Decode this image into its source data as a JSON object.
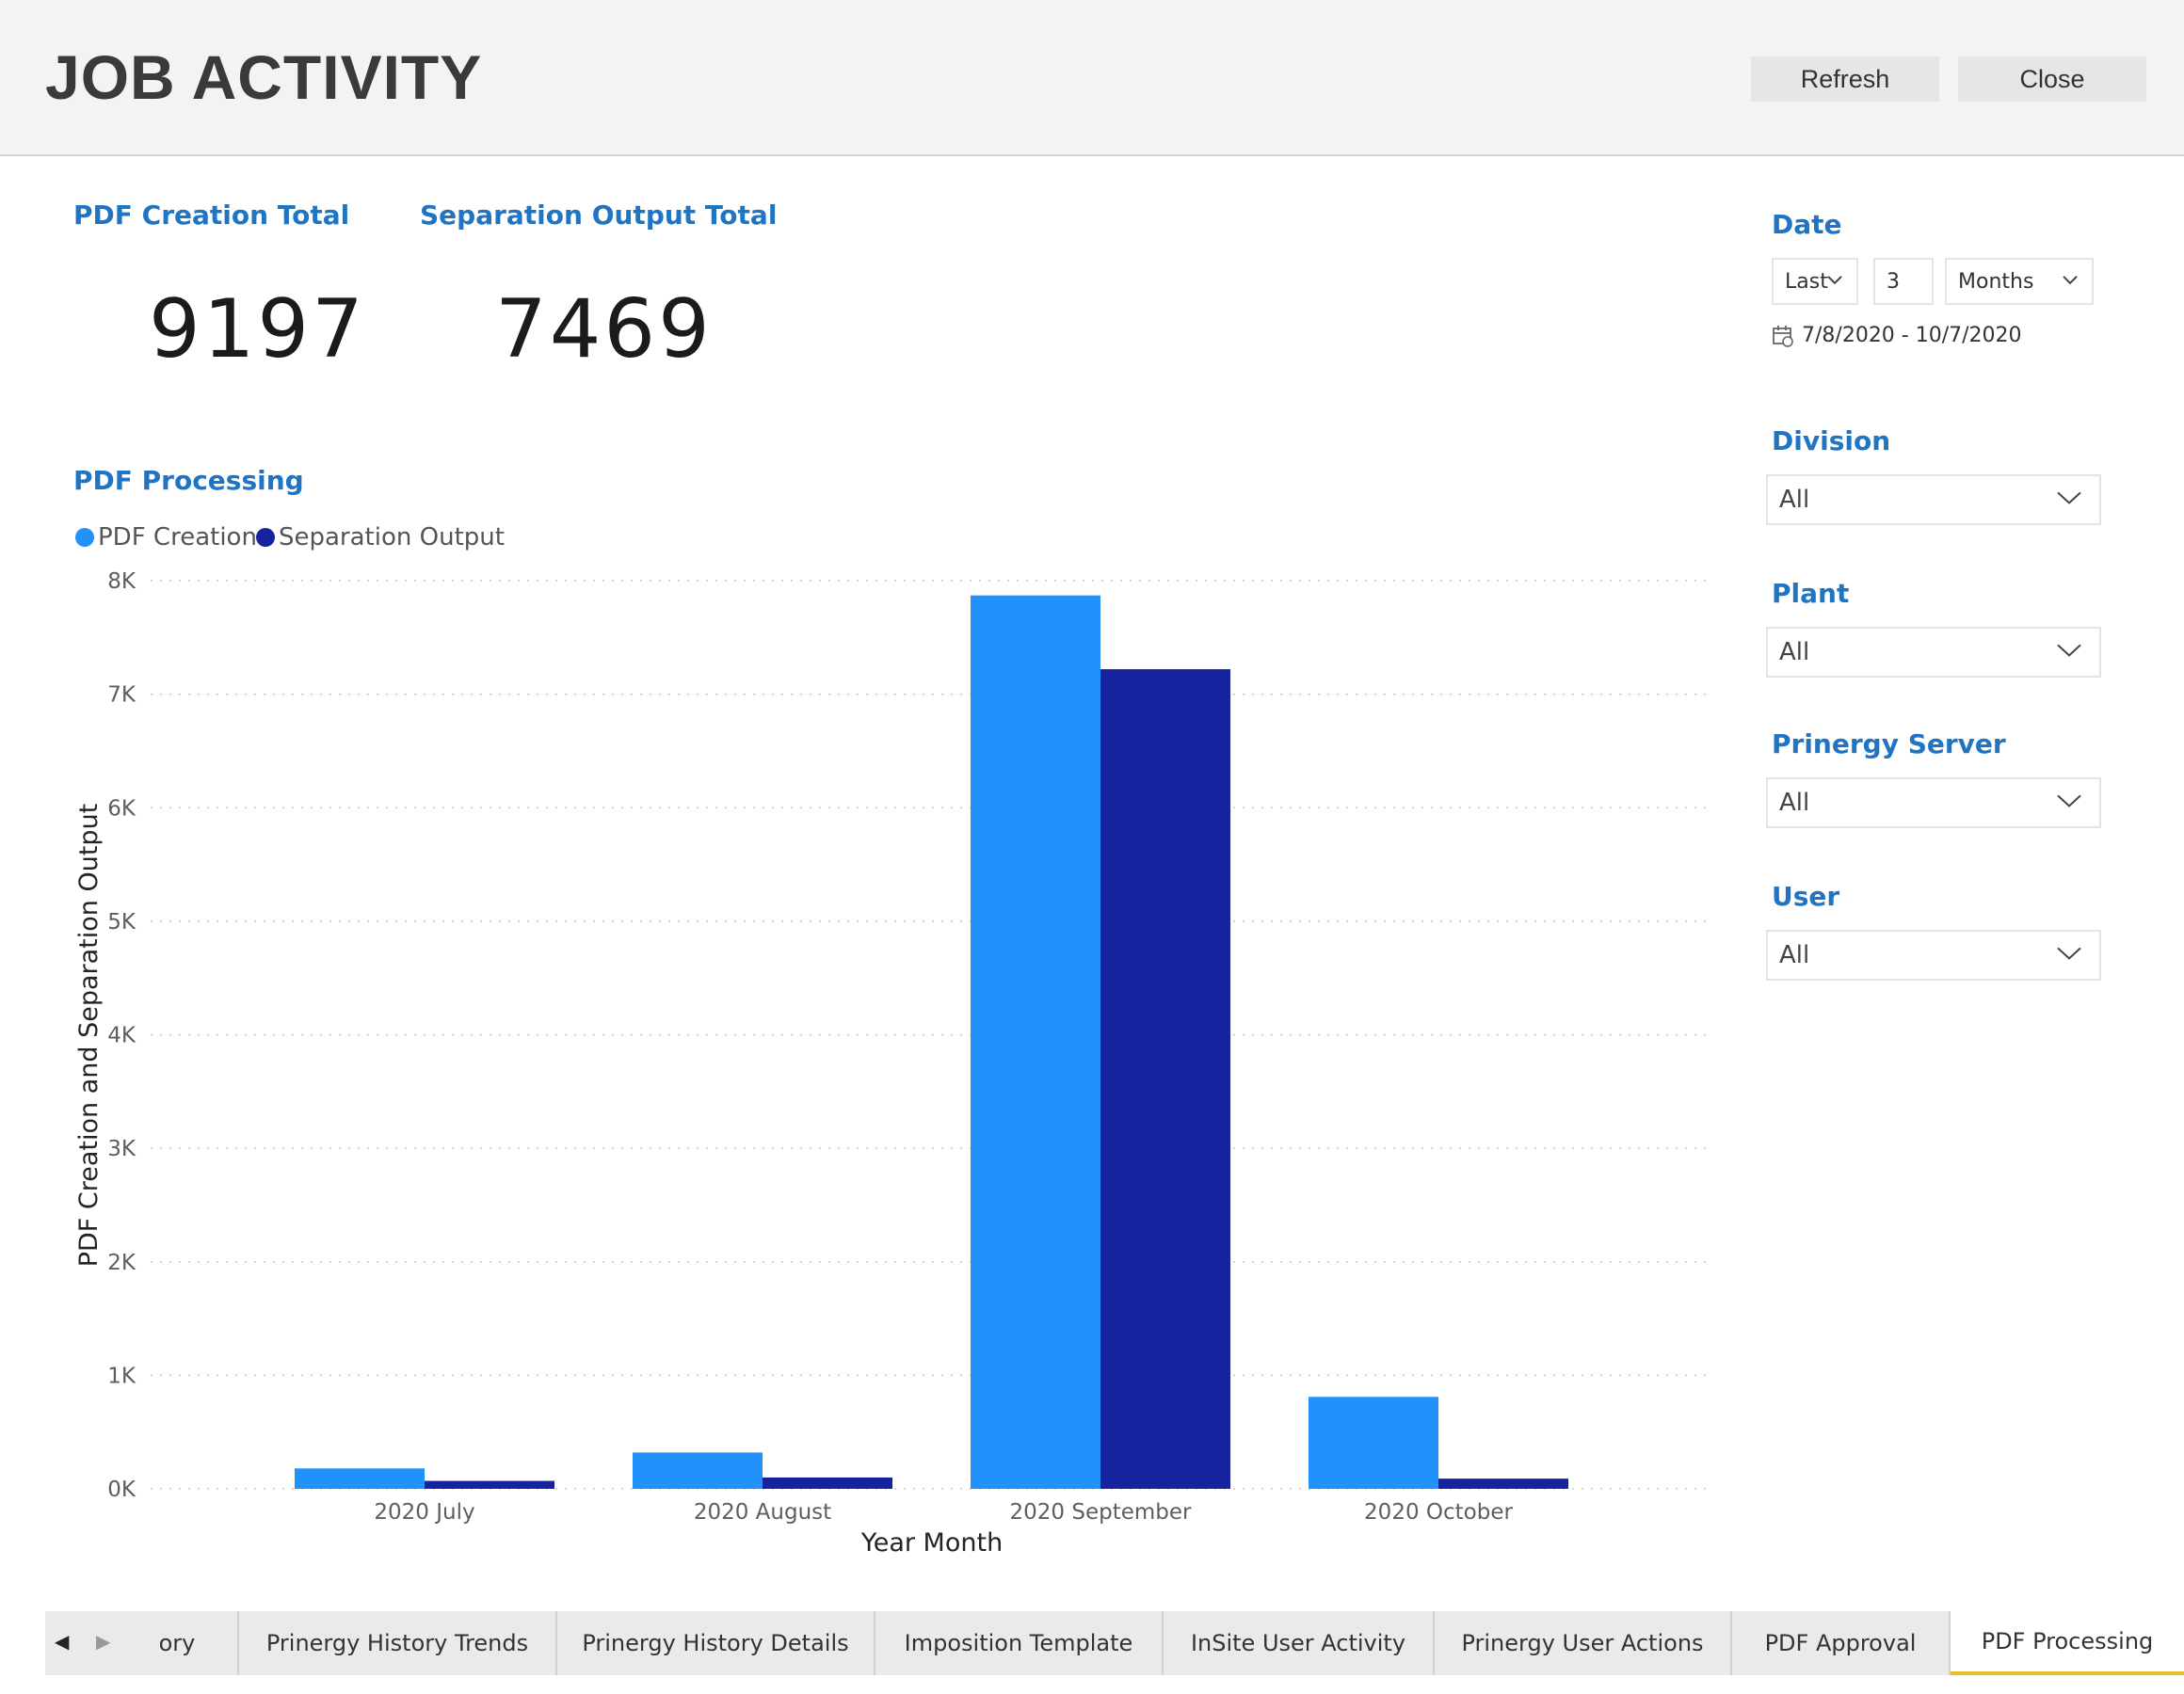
{
  "header": {
    "title": "JOB ACTIVITY",
    "refresh_label": "Refresh",
    "close_label": "Close"
  },
  "cards": [
    {
      "title": "PDF Creation Total",
      "value": "9197"
    },
    {
      "title": "Separation Output Total",
      "value": "7469"
    }
  ],
  "chart_data": {
    "type": "bar",
    "title": "PDF Processing",
    "xlabel": "Year Month",
    "ylabel": "PDF Creation and Separation Output",
    "categories": [
      "2020 July",
      "2020 August",
      "2020 September",
      "2020 October"
    ],
    "series": [
      {
        "name": "PDF Creation",
        "color": "#2191fb",
        "values": [
          180,
          320,
          7870,
          810
        ]
      },
      {
        "name": "Separation Output",
        "color": "#15249e",
        "values": [
          70,
          100,
          7220,
          90
        ]
      }
    ],
    "ylim": [
      0,
      8000
    ],
    "yticks": [
      0,
      1000,
      2000,
      3000,
      4000,
      5000,
      6000,
      7000,
      8000
    ],
    "ytick_labels": [
      "0K",
      "1K",
      "2K",
      "3K",
      "4K",
      "5K",
      "6K",
      "7K",
      "8K"
    ],
    "grid": true,
    "legend": "top-left"
  },
  "filters": {
    "date": {
      "title": "Date",
      "mode": "Last",
      "count": "3",
      "unit": "Months",
      "range": "7/8/2020 - 10/7/2020"
    },
    "division": {
      "title": "Division",
      "value": "All"
    },
    "plant": {
      "title": "Plant",
      "value": "All"
    },
    "server": {
      "title": "Prinergy Server",
      "value": "All"
    },
    "user": {
      "title": "User",
      "value": "All"
    }
  },
  "tabs": [
    {
      "label": "ory",
      "active": false
    },
    {
      "label": "Prinergy History Trends",
      "active": false
    },
    {
      "label": "Prinergy History Details",
      "active": false
    },
    {
      "label": "Imposition Template",
      "active": false
    },
    {
      "label": "InSite User Activity",
      "active": false
    },
    {
      "label": "Prinergy User Actions",
      "active": false
    },
    {
      "label": "PDF Approval",
      "active": false
    },
    {
      "label": "PDF Processing",
      "active": true
    }
  ],
  "colors": {
    "accent": "#1f74c4",
    "active_tab_underline": "#e6c12a"
  }
}
